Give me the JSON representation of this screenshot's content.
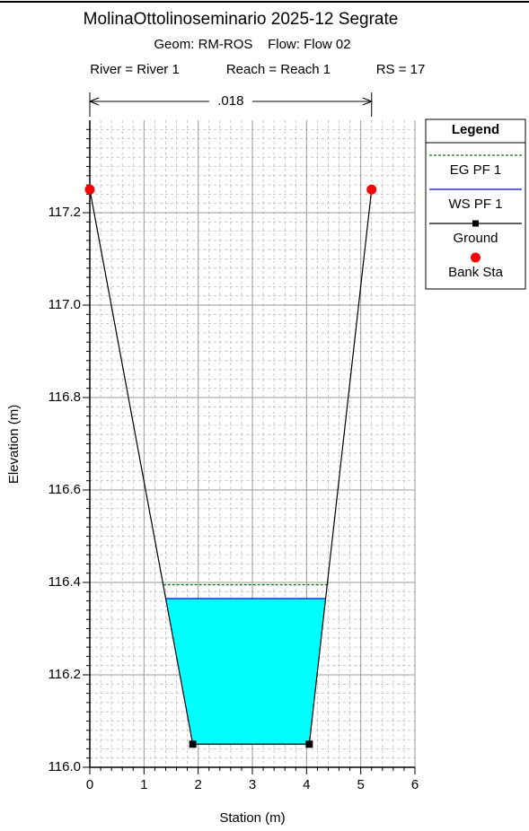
{
  "chart_data": {
    "type": "line",
    "title": "MolinaOttolinoseminario 2025-12 Segrate",
    "subtitle": "Geom: RM-ROS    Flow: Flow 02",
    "location": [
      "River = River 1",
      "Reach = Reach 1",
      "RS = 17"
    ],
    "annotation": ".018",
    "x_label": "Station (m)",
    "y_label": "Elevation (m)",
    "xlim": [
      0,
      6
    ],
    "xticks": [
      0,
      1,
      2,
      3,
      4,
      5,
      6
    ],
    "ylim": [
      116,
      117.4
    ],
    "yticks": [
      {
        "value": 116.0,
        "label": "116.0"
      },
      116.2,
      116.4,
      116.6,
      116.8,
      {
        "value": 117.0,
        "label": "117.0"
      },
      117.2
    ],
    "grid": true,
    "minor_grid": true,
    "legend_title": "Legend",
    "legend_position": "right",
    "water_color": "#00ffff",
    "series": [
      {
        "name": "EG PF 1",
        "color": "#008000",
        "kind": "water-level",
        "values": [
          116.395
        ]
      },
      {
        "name": "WS PF 1",
        "color": "#0000ff",
        "kind": "water-level",
        "values": [
          116.365
        ]
      },
      {
        "name": "Ground",
        "color": "#000000",
        "kind": "ground",
        "x": [
          0,
          1.9,
          4.05,
          5.2
        ],
        "values": [
          117.25,
          116.05,
          116.05,
          117.25
        ]
      },
      {
        "name": "Bank Sta",
        "color": "#ff0000",
        "kind": "bank",
        "x": [
          0,
          5.2
        ],
        "values": [
          117.25,
          117.25
        ]
      }
    ]
  }
}
